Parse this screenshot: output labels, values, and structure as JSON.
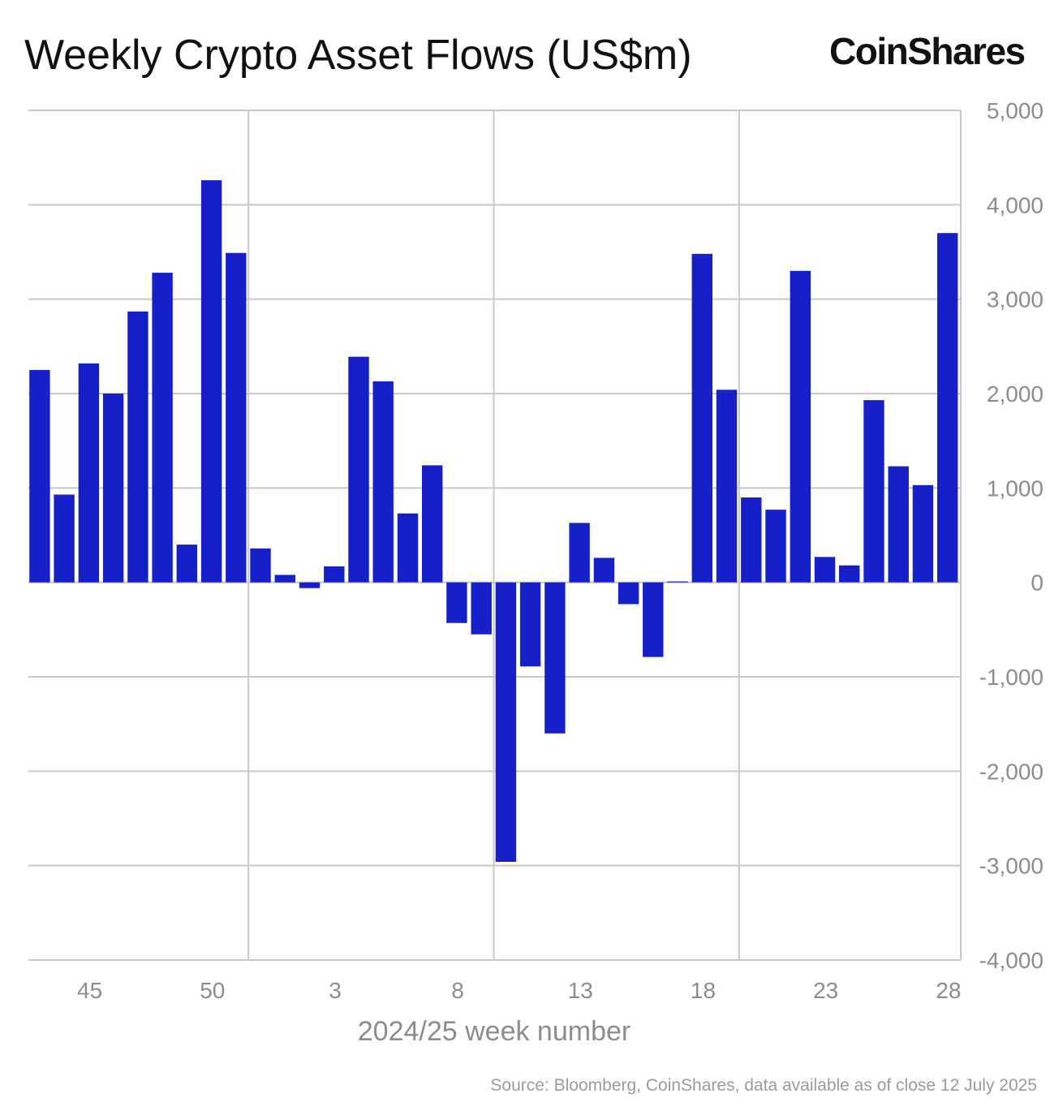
{
  "header": {
    "title": "Weekly Crypto Asset Flows (US$m)",
    "logo": "CoinShares"
  },
  "footer": {
    "source": "Source: Bloomberg, CoinShares, data available as of close 12 July 2025"
  },
  "colors": {
    "bar": "#1520c8",
    "grid": "#c8c8c8",
    "axis_text": "#8c8c8c"
  },
  "chart_data": {
    "type": "bar",
    "title": "Weekly Crypto Asset Flows (US$m)",
    "xlabel": "2024/25 week number",
    "ylabel": "",
    "ylim": [
      -4000,
      5000
    ],
    "y_ticks": [
      5000,
      4000,
      3000,
      2000,
      1000,
      0,
      -1000,
      -2000,
      -3000,
      -4000
    ],
    "y_tick_labels": [
      "5,000",
      "4,000",
      "3,000",
      "2,000",
      "1,000",
      "0",
      "-1,000",
      "-2,000",
      "-3,000",
      "-4,000"
    ],
    "y_axis_side": "right",
    "x_tick_labels": [
      "45",
      "50",
      "3",
      "8",
      "13",
      "18",
      "23",
      "28"
    ],
    "grid": true,
    "categories": [
      "43",
      "44",
      "45",
      "46",
      "47",
      "48",
      "49",
      "50",
      "51",
      "52",
      "1",
      "2",
      "3",
      "4",
      "5",
      "6",
      "7",
      "8",
      "9",
      "10",
      "11",
      "12",
      "13",
      "14",
      "15",
      "16",
      "17",
      "18",
      "19",
      "20",
      "21",
      "22",
      "23",
      "24",
      "25",
      "26",
      "27",
      "28"
    ],
    "values": [
      2250,
      930,
      2320,
      2000,
      2870,
      3280,
      400,
      4260,
      3490,
      360,
      80,
      -60,
      170,
      2390,
      2130,
      730,
      1240,
      -430,
      -550,
      -2960,
      -890,
      -1600,
      630,
      260,
      -230,
      -790,
      10,
      3480,
      2040,
      900,
      770,
      3300,
      270,
      180,
      1930,
      1230,
      1030,
      3700
    ]
  }
}
